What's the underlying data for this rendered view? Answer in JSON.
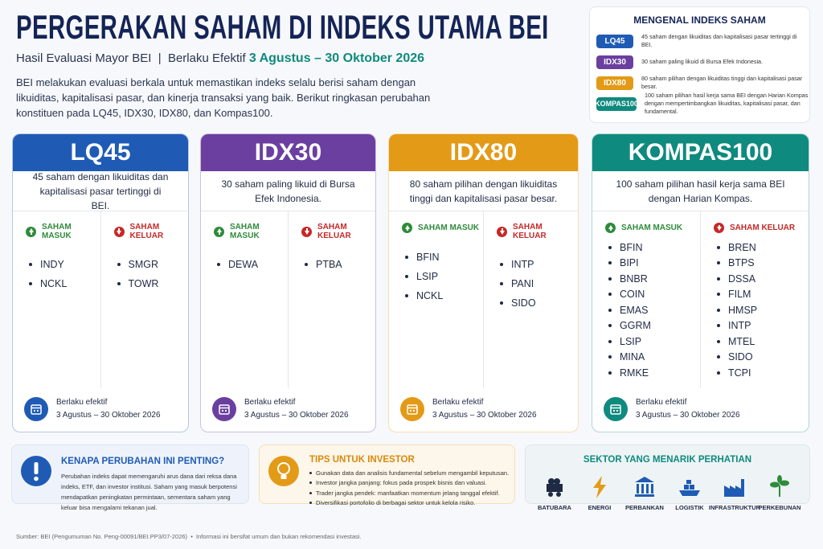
{
  "header": {
    "title": "PERGERAKAN SAHAM DI INDEKS UTAMA BEI",
    "subtitle": "Hasil Evaluasi Mayor BEI  |  Berlaku Efektif",
    "subtitle_date": "3 Agustus – 30 Oktober 2026",
    "intro": "BEI melakukan evaluasi berkala untuk memastikan indeks selalu berisi saham dengan likuiditas, kapitalisasi pasar, dan kinerja transaksi yang baik. Berikut ringkasan perubahan konstituen pada LQ45, IDX30, IDX80, dan Kompas100."
  },
  "legend": {
    "title": "MENGENAL INDEKS SAHAM",
    "items": [
      {
        "badge": "LQ45",
        "text": "45 saham dengan likuiditas dan kapitalisasi pasar tertinggi di BEI."
      },
      {
        "badge": "IDX30",
        "text": "30 saham paling likuid di Bursa Efek Indonesia."
      },
      {
        "badge": "IDX80",
        "text": "80 saham pilihan dengan likuiditas tinggi dan kapitalisasi pasar besar."
      },
      {
        "badge": "KOMPAS100",
        "text": "100 saham pilihan hasil kerja sama BEI dengan Harian Kompas dengan mempertimbangkan likuiditas, kapitalisasi pasar, dan fundamental."
      }
    ]
  },
  "indices": [
    {
      "name": "LQ45",
      "description": "45 saham dengan likuiditas dan kapitalisasi pasar tertinggi di BEI.",
      "in_label": "SAHAM MASUK",
      "out_label": "SAHAM KELUAR",
      "in": [
        "INDY",
        "NCKL"
      ],
      "out": [
        "SMGR",
        "TOWR"
      ],
      "effective_label": "Berlaku efektif",
      "effective_date": "3 Agustus – 30 Oktober 2026"
    },
    {
      "name": "IDX30",
      "description": "30 saham paling likuid di Bursa Efek Indonesia.",
      "in_label": "SAHAM MASUK",
      "out_label": "SAHAM KELUAR",
      "in": [
        "DEWA"
      ],
      "out": [
        "PTBA"
      ],
      "effective_label": "Berlaku efektif",
      "effective_date": "3 Agustus – 30 Oktober 2026"
    },
    {
      "name": "IDX80",
      "description": "80 saham pilihan dengan likuiditas tinggi dan kapitalisasi pasar besar.",
      "in_label": "SAHAM MASUK",
      "out_label": "SAHAM KELUAR",
      "in": [
        "BFIN",
        "LSIP",
        "NCKL"
      ],
      "out": [
        "INTP",
        "PANI",
        "SIDO"
      ],
      "effective_label": "Berlaku efektif",
      "effective_date": "3 Agustus – 30 Oktober 2026"
    },
    {
      "name": "KOMPAS100",
      "description": "100 saham pilihan hasil kerja sama BEI dengan Harian Kompas.",
      "in_label": "SAHAM MASUK",
      "out_label": "SAHAM KELUAR",
      "in": [
        "BFIN",
        "BIPI",
        "BNBR",
        "COIN",
        "EMAS",
        "GGRM",
        "LSIP",
        "MINA",
        "RMKE"
      ],
      "out": [
        "BREN",
        "BTPS",
        "DSSA",
        "FILM",
        "HMSP",
        "INTP",
        "MTEL",
        "SIDO",
        "TCPI"
      ],
      "effective_label": "Berlaku efektif",
      "effective_date": "3 Agustus – 30 Oktober 2026"
    }
  ],
  "why": {
    "title": "KENAPA PERUBAHAN INI PENTING?",
    "text": "Perubahan indeks dapat memengaruhi arus dana dari reksa dana indeks, ETF, dan investor institusi. Saham yang masuk berpotensi mendapatkan peningkatan permintaan, sementara saham yang keluar bisa mengalami tekanan jual."
  },
  "tips": {
    "title": "TIPS UNTUK INVESTOR",
    "items": [
      "Gunakan data dan analisis fundamental sebelum mengambil keputusan.",
      "Investor jangka panjang: fokus pada prospek bisnis dan valuasi.",
      "Trader jangka pendek: manfaatkan momentum jelang tanggal efektif.",
      "Diversifikasi portofolio di berbagai sektor untuk kelola risiko."
    ]
  },
  "sectors": {
    "title": "SEKTOR YANG MENARIK PERHATIAN",
    "items": [
      "BATUBARA",
      "ENERGI",
      "PERBANKAN",
      "LOGISTIK",
      "INFRASTRUKTUR",
      "PERKEBUNAN"
    ]
  },
  "footer": {
    "source": "Sumber: BEI (Pengumuman No. Peng-00091/BEI.PP3/07-2026)",
    "note": "Informasi ini bersifat umum dan bukan rekomendasi investasi."
  }
}
